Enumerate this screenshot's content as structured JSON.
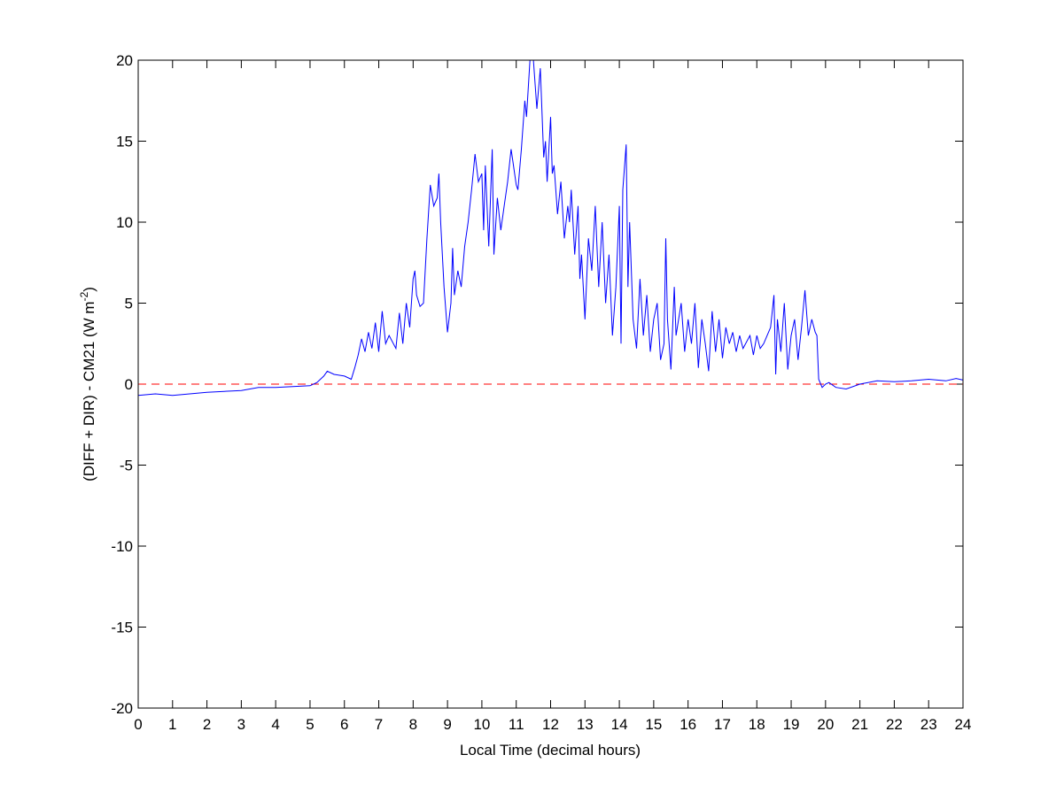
{
  "chart_data": {
    "type": "line",
    "title": "",
    "xlabel": "Local Time (decimal hours)",
    "ylabel_main": "(DIFF + DIR) - CM21 (W m",
    "ylabel_sup": "-2",
    "ylabel_close": ")",
    "xlim": [
      0,
      24
    ],
    "ylim": [
      -20,
      20
    ],
    "xticks": [
      0,
      1,
      2,
      3,
      4,
      5,
      6,
      7,
      8,
      9,
      10,
      11,
      12,
      13,
      14,
      15,
      16,
      17,
      18,
      19,
      20,
      21,
      22,
      23,
      24
    ],
    "yticks": [
      -20,
      -15,
      -10,
      -5,
      0,
      5,
      10,
      15,
      20
    ],
    "grid": false,
    "colors": {
      "series": "#0000ff",
      "reference": "#ff0000"
    },
    "reference_line": {
      "y": 0,
      "style": "dashed"
    },
    "series": [
      {
        "x": [
          0,
          0.5,
          1,
          1.5,
          2,
          2.5,
          3,
          3.5,
          4,
          4.5,
          5,
          5.2,
          5.4,
          5.5,
          5.7,
          6,
          6.2,
          6.3,
          6.4,
          6.5,
          6.6,
          6.7,
          6.8,
          6.9,
          7,
          7.1,
          7.2,
          7.3,
          7.5,
          7.6,
          7.7,
          7.8,
          7.9,
          8,
          8.05,
          8.1,
          8.2,
          8.3,
          8.4,
          8.5,
          8.6,
          8.7,
          8.75,
          8.8,
          8.9,
          9.0,
          9.1,
          9.15,
          9.2,
          9.3,
          9.4,
          9.5,
          9.6,
          9.7,
          9.8,
          9.9,
          10,
          10.05,
          10.1,
          10.2,
          10.3,
          10.35,
          10.45,
          10.55,
          10.65,
          10.75,
          10.85,
          10.9,
          11,
          11.05,
          11.15,
          11.25,
          11.3,
          11.4,
          11.5,
          11.6,
          11.7,
          11.8,
          11.85,
          11.9,
          12.0,
          12.05,
          12.1,
          12.2,
          12.3,
          12.4,
          12.5,
          12.55,
          12.6,
          12.7,
          12.8,
          12.85,
          12.9,
          13.0,
          13.1,
          13.2,
          13.3,
          13.4,
          13.5,
          13.6,
          13.7,
          13.8,
          13.9,
          14,
          14.05,
          14.1,
          14.2,
          14.25,
          14.3,
          14.4,
          14.5,
          14.6,
          14.7,
          14.8,
          14.9,
          15,
          15.1,
          15.2,
          15.3,
          15.35,
          15.4,
          15.5,
          15.6,
          15.65,
          15.8,
          15.9,
          16,
          16.1,
          16.2,
          16.3,
          16.4,
          16.5,
          16.6,
          16.7,
          16.8,
          16.9,
          17,
          17.1,
          17.2,
          17.3,
          17.4,
          17.5,
          17.6,
          17.8,
          17.9,
          18,
          18.1,
          18.2,
          18.4,
          18.5,
          18.55,
          18.6,
          18.7,
          18.8,
          18.9,
          19,
          19.1,
          19.2,
          19.3,
          19.4,
          19.5,
          19.6,
          19.7,
          19.75,
          19.8,
          19.9,
          20,
          20.1,
          20.3,
          20.6,
          21,
          21.5,
          22,
          22.5,
          23,
          23.5,
          23.8,
          24
        ],
        "y": [
          -0.7,
          -0.6,
          -0.7,
          -0.6,
          -0.5,
          -0.45,
          -0.4,
          -0.2,
          -0.2,
          -0.15,
          -0.1,
          0.1,
          0.5,
          0.8,
          0.6,
          0.5,
          0.3,
          1,
          1.8,
          2.8,
          2,
          3.2,
          2.2,
          3.8,
          2,
          4.5,
          2.5,
          3,
          2.2,
          4.4,
          2.5,
          5,
          3.5,
          6.5,
          7,
          5.5,
          4.8,
          5,
          9,
          12.3,
          11,
          11.5,
          13,
          10,
          6,
          3.2,
          5,
          8.4,
          5.5,
          7,
          6,
          8.5,
          10,
          12,
          14.2,
          12.5,
          13,
          9.5,
          13.5,
          8.5,
          14.5,
          8,
          11.5,
          9.5,
          11,
          12.5,
          14.5,
          13.8,
          12.3,
          12,
          14.5,
          17.5,
          16.5,
          20,
          20,
          17,
          19.5,
          14,
          15,
          12.5,
          16.5,
          13,
          13.5,
          10.5,
          12.5,
          9,
          11,
          10,
          12,
          8,
          11,
          6.5,
          8,
          4,
          9,
          7,
          11,
          6,
          10,
          5,
          8,
          3,
          6,
          11,
          2.5,
          12,
          14.8,
          6,
          10,
          4,
          2.2,
          6.5,
          3,
          5.5,
          2,
          4,
          5,
          1.5,
          2.5,
          9,
          4,
          0.9,
          6,
          3,
          5,
          2,
          4,
          2.5,
          5,
          1,
          4,
          2.5,
          0.8,
          4.5,
          2,
          4,
          1.6,
          3.5,
          2.5,
          3.2,
          2,
          3,
          2.2,
          3,
          1.8,
          3,
          2.2,
          2.5,
          3.5,
          5.5,
          0.6,
          4,
          2,
          5,
          0.9,
          3,
          4,
          1.5,
          3.5,
          5.8,
          3,
          4,
          3.2,
          3,
          0.3,
          -0.2,
          0,
          0.1,
          -0.2,
          -0.3,
          0,
          0.2,
          0.15,
          0.2,
          0.3,
          0.2,
          0.35,
          0.25
        ]
      }
    ]
  }
}
